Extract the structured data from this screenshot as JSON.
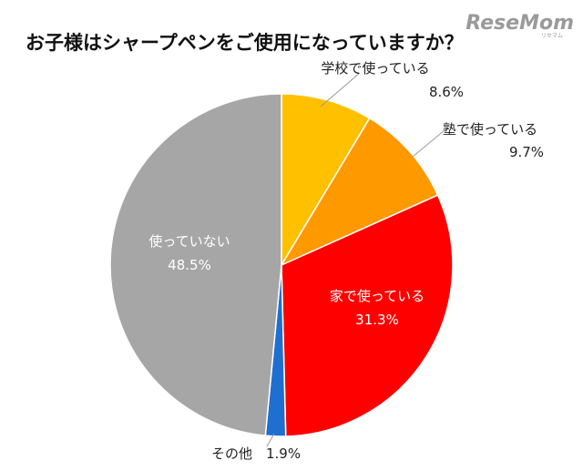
{
  "brand": {
    "logo_text": "ReseMom",
    "logo_subtext": "リセマム"
  },
  "chart_data": {
    "type": "pie",
    "title": "お子様はシャープペンをご使用になっていますか？",
    "start": "12 o'clock",
    "direction": "clockwise",
    "slices": [
      {
        "label": "学校で使っている",
        "value": 8.6,
        "value_label": "8.6%",
        "color": "#FFC000"
      },
      {
        "label": "塾で使っている",
        "value": 9.7,
        "value_label": "9.7%",
        "color": "#FF9900"
      },
      {
        "label": "家で使っている",
        "value": 31.3,
        "value_label": "31.3%",
        "color": "#FF0000"
      },
      {
        "label": "その他",
        "value": 1.9,
        "value_label": "1.9%",
        "color": "#1F6FD1"
      },
      {
        "label": "使っていない",
        "value": 48.5,
        "value_label": "48.5%",
        "color": "#A6A6A6"
      }
    ]
  }
}
